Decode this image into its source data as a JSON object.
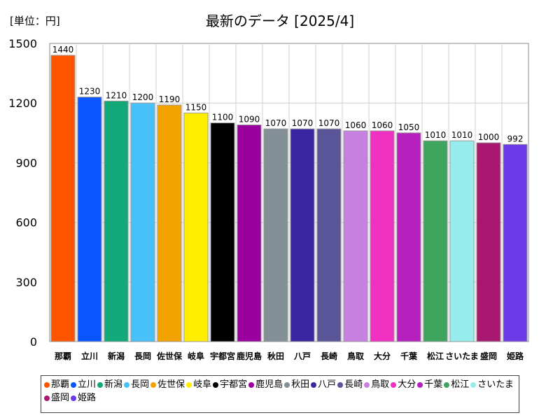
{
  "chart_data": {
    "type": "bar",
    "title": "最新のデータ [2025/4]",
    "unit_label": "[単位：円]",
    "xlabel": "",
    "ylabel": "",
    "ylim": [
      0,
      1500
    ],
    "yticks": [
      0,
      300,
      600,
      900,
      1200,
      1500
    ],
    "grid": true,
    "legend_position": "bottom",
    "categories": [
      "那覇",
      "立川",
      "新潟",
      "長岡",
      "佐世保",
      "岐阜",
      "宇都宮",
      "鹿児島",
      "秋田",
      "八戸",
      "長崎",
      "鳥取",
      "大分",
      "千葉",
      "松江",
      "さいたま",
      "盛岡",
      "姫路"
    ],
    "values": [
      1440,
      1230,
      1210,
      1200,
      1190,
      1150,
      1100,
      1090,
      1070,
      1070,
      1070,
      1060,
      1060,
      1050,
      1010,
      1010,
      1000,
      992
    ],
    "colors": [
      "#ff5500",
      "#0a55ff",
      "#12a878",
      "#48c0f8",
      "#f2a300",
      "#ffee00",
      "#000000",
      "#99009e",
      "#839098",
      "#3a26a0",
      "#5a5498",
      "#c880e0",
      "#f030c0",
      "#b51fbe",
      "#3fa45e",
      "#96ecec",
      "#a81870",
      "#6c3ae6"
    ]
  }
}
